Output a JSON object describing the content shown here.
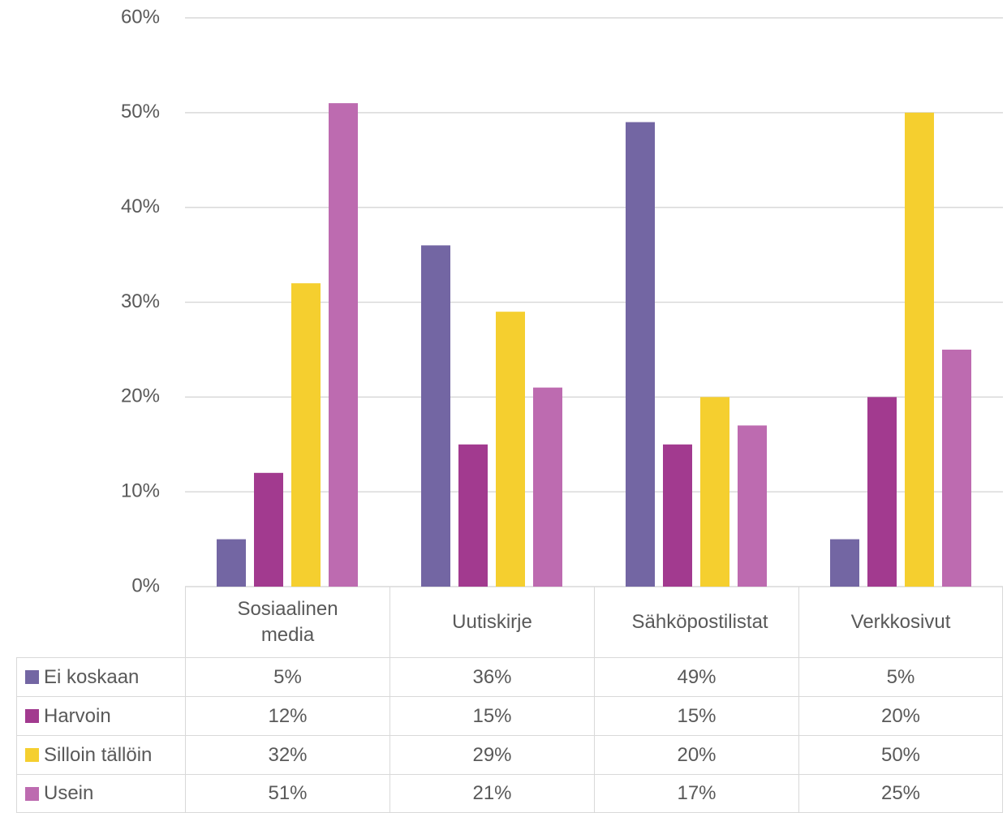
{
  "chart_data": {
    "type": "bar",
    "categories": [
      "Sosiaalinen media",
      "Uutiskirje",
      "Sähköpostilistat",
      "Verkkosivut"
    ],
    "series": [
      {
        "name": "Ei koskaan",
        "color": "#7366a3",
        "values": [
          5,
          36,
          49,
          5
        ],
        "value_labels": [
          "5%",
          "36%",
          "49%",
          "5%"
        ]
      },
      {
        "name": "Harvoin",
        "color": "#a23a8f",
        "values": [
          12,
          15,
          15,
          20
        ],
        "value_labels": [
          "12%",
          "15%",
          "15%",
          "20%"
        ]
      },
      {
        "name": "Silloin tällöin",
        "color": "#f5cf2f",
        "values": [
          32,
          29,
          20,
          50
        ],
        "value_labels": [
          "32%",
          "29%",
          "20%",
          "50%"
        ]
      },
      {
        "name": "Usein",
        "color": "#bd6bb0",
        "values": [
          51,
          21,
          17,
          25
        ],
        "value_labels": [
          "51%",
          "21%",
          "17%",
          "25%"
        ]
      }
    ],
    "ylim": [
      0,
      60
    ],
    "yticks": [
      {
        "value": 0,
        "label": "0%"
      },
      {
        "value": 10,
        "label": "10%"
      },
      {
        "value": 20,
        "label": "20%"
      },
      {
        "value": 30,
        "label": "30%"
      },
      {
        "value": 40,
        "label": "40%"
      },
      {
        "value": 50,
        "label": "50%"
      },
      {
        "value": 60,
        "label": "60%"
      }
    ],
    "grid": true
  }
}
